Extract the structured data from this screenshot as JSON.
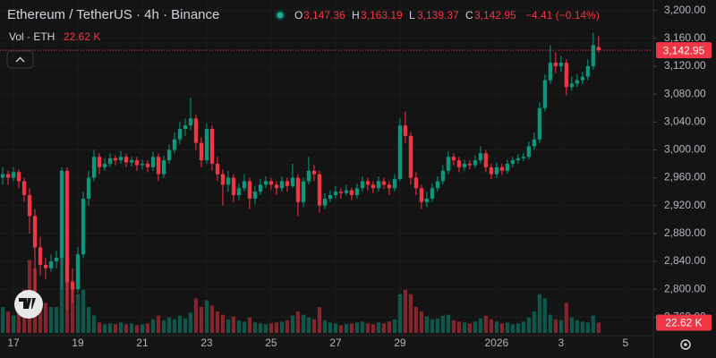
{
  "header": {
    "symbol": "Ethereum / TetherUS · 4h · Binance",
    "o_label": "O",
    "o": "3,147.36",
    "h_label": "H",
    "h": "3,163.19",
    "l_label": "L",
    "l": "3,139.37",
    "c_label": "C",
    "c": "3,142.95",
    "change": "−4.41 (−0.14%)",
    "vol_label": "Vol · ETH",
    "vol": "22.62 K"
  },
  "chart_data": {
    "type": "candlestick",
    "up_color": "#089981",
    "down_color": "#f23645",
    "ohlc": [
      [
        2960,
        2975,
        2950,
        2965
      ],
      [
        2965,
        2970,
        2950,
        2960
      ],
      [
        2960,
        2975,
        2955,
        2968
      ],
      [
        2968,
        2972,
        2945,
        2955
      ],
      [
        2955,
        2960,
        2925,
        2935
      ],
      [
        2935,
        2945,
        2880,
        2905
      ],
      [
        2905,
        2915,
        2790,
        2860
      ],
      [
        2860,
        2875,
        2820,
        2835
      ],
      [
        2835,
        2845,
        2815,
        2830
      ],
      [
        2830,
        2850,
        2825,
        2840
      ],
      [
        2840,
        2855,
        2830,
        2845
      ],
      [
        2845,
        2975,
        2800,
        2970
      ],
      [
        2970,
        2975,
        2770,
        2810
      ],
      [
        2810,
        2830,
        2780,
        2800
      ],
      [
        2800,
        2860,
        2795,
        2850
      ],
      [
        2850,
        2940,
        2845,
        2930
      ],
      [
        2930,
        2970,
        2920,
        2960
      ],
      [
        2960,
        3000,
        2955,
        2990
      ],
      [
        2990,
        2995,
        2965,
        2975
      ],
      [
        2975,
        2988,
        2970,
        2980
      ],
      [
        2980,
        2995,
        2975,
        2988
      ],
      [
        2988,
        2992,
        2978,
        2985
      ],
      [
        2985,
        2998,
        2980,
        2990
      ],
      [
        2990,
        2994,
        2975,
        2982
      ],
      [
        2982,
        2990,
        2976,
        2985
      ],
      [
        2985,
        2990,
        2970,
        2978
      ],
      [
        2978,
        2986,
        2972,
        2980
      ],
      [
        2980,
        2985,
        2968,
        2975
      ],
      [
        2975,
        2998,
        2970,
        2990
      ],
      [
        2990,
        2995,
        2955,
        2965
      ],
      [
        2965,
        2992,
        2960,
        2985
      ],
      [
        2985,
        3008,
        2980,
        3000
      ],
      [
        3000,
        3025,
        2995,
        3015
      ],
      [
        3015,
        3040,
        3008,
        3030
      ],
      [
        3030,
        3045,
        3020,
        3035
      ],
      [
        3035,
        3075,
        3028,
        3045
      ],
      [
        3045,
        3050,
        3000,
        3010
      ],
      [
        3010,
        3018,
        2975,
        2985
      ],
      [
        2985,
        3038,
        2980,
        3030
      ],
      [
        3030,
        3035,
        2970,
        2980
      ],
      [
        2980,
        2990,
        2955,
        2965
      ],
      [
        2965,
        2972,
        2920,
        2950
      ],
      [
        2950,
        2970,
        2940,
        2960
      ],
      [
        2960,
        2965,
        2925,
        2935
      ],
      [
        2935,
        2952,
        2928,
        2945
      ],
      [
        2945,
        2965,
        2940,
        2955
      ],
      [
        2955,
        2960,
        2915,
        2930
      ],
      [
        2930,
        2948,
        2922,
        2940
      ],
      [
        2940,
        2958,
        2935,
        2950
      ],
      [
        2950,
        2962,
        2945,
        2955
      ],
      [
        2955,
        2960,
        2942,
        2950
      ],
      [
        2950,
        2955,
        2935,
        2945
      ],
      [
        2945,
        2962,
        2940,
        2955
      ],
      [
        2955,
        2960,
        2940,
        2948
      ],
      [
        2948,
        2980,
        2945,
        2960
      ],
      [
        2960,
        2965,
        2905,
        2925
      ],
      [
        2925,
        2960,
        2918,
        2955
      ],
      [
        2955,
        2990,
        2950,
        2970
      ],
      [
        2970,
        2978,
        2955,
        2965
      ],
      [
        2965,
        2970,
        2910,
        2920
      ],
      [
        2920,
        2938,
        2915,
        2930
      ],
      [
        2930,
        2942,
        2925,
        2935
      ],
      [
        2935,
        2948,
        2930,
        2940
      ],
      [
        2940,
        2945,
        2930,
        2938
      ],
      [
        2938,
        2950,
        2934,
        2942
      ],
      [
        2942,
        2946,
        2928,
        2935
      ],
      [
        2935,
        2952,
        2930,
        2945
      ],
      [
        2945,
        2962,
        2940,
        2955
      ],
      [
        2955,
        2960,
        2942,
        2950
      ],
      [
        2950,
        2955,
        2938,
        2945
      ],
      [
        2945,
        2962,
        2940,
        2955
      ],
      [
        2955,
        2960,
        2944,
        2950
      ],
      [
        2950,
        2955,
        2935,
        2945
      ],
      [
        2945,
        2965,
        2940,
        2958
      ],
      [
        2958,
        3045,
        2955,
        3035
      ],
      [
        3035,
        3055,
        3010,
        3020
      ],
      [
        3020,
        3025,
        2950,
        2960
      ],
      [
        2960,
        2968,
        2935,
        2945
      ],
      [
        2945,
        2950,
        2915,
        2925
      ],
      [
        2925,
        2940,
        2918,
        2930
      ],
      [
        2930,
        2952,
        2925,
        2945
      ],
      [
        2945,
        2962,
        2940,
        2955
      ],
      [
        2955,
        2978,
        2950,
        2970
      ],
      [
        2970,
        2998,
        2965,
        2990
      ],
      [
        2990,
        2995,
        2978,
        2985
      ],
      [
        2985,
        2990,
        2968,
        2975
      ],
      [
        2975,
        2986,
        2970,
        2980
      ],
      [
        2980,
        2985,
        2972,
        2978
      ],
      [
        2978,
        2992,
        2974,
        2985
      ],
      [
        2985,
        3005,
        2980,
        2995
      ],
      [
        2995,
        3000,
        2968,
        2975
      ],
      [
        2975,
        2980,
        2958,
        2965
      ],
      [
        2965,
        2982,
        2960,
        2975
      ],
      [
        2975,
        2980,
        2964,
        2970
      ],
      [
        2970,
        2986,
        2966,
        2980
      ],
      [
        2980,
        2990,
        2975,
        2985
      ],
      [
        2985,
        2994,
        2980,
        2988
      ],
      [
        2988,
        2996,
        2984,
        2990
      ],
      [
        2990,
        3012,
        2986,
        3005
      ],
      [
        3005,
        3025,
        3000,
        3015
      ],
      [
        3015,
        3068,
        3010,
        3060
      ],
      [
        3060,
        3108,
        3055,
        3100
      ],
      [
        3100,
        3150,
        3095,
        3125
      ],
      [
        3125,
        3140,
        3110,
        3120
      ],
      [
        3120,
        3135,
        3112,
        3125
      ],
      [
        3125,
        3130,
        3078,
        3090
      ],
      [
        3090,
        3105,
        3085,
        3095
      ],
      [
        3095,
        3108,
        3090,
        3100
      ],
      [
        3100,
        3112,
        3094,
        3105
      ],
      [
        3105,
        3130,
        3100,
        3120
      ],
      [
        3120,
        3168,
        3115,
        3150
      ],
      [
        3147.36,
        3163.19,
        3139.37,
        3142.95
      ]
    ],
    "volume": [
      57000,
      47000,
      38000,
      66000,
      95000,
      160000,
      142000,
      76000,
      66000,
      57000,
      57000,
      171000,
      142000,
      114000,
      85000,
      95000,
      57000,
      38000,
      23000,
      19000,
      21000,
      19000,
      23000,
      19000,
      21000,
      17000,
      19000,
      21000,
      30000,
      38000,
      28000,
      34000,
      30000,
      38000,
      32000,
      45000,
      76000,
      57000,
      72000,
      60000,
      47000,
      40000,
      30000,
      36000,
      28000,
      25000,
      34000,
      23000,
      21000,
      19000,
      21000,
      23000,
      25000,
      28000,
      38000,
      47000,
      40000,
      34000,
      30000,
      57000,
      28000,
      23000,
      21000,
      17000,
      19000,
      21000,
      23000,
      25000,
      21000,
      19000,
      23000,
      21000,
      25000,
      30000,
      85000,
      95000,
      85000,
      57000,
      47000,
      36000,
      30000,
      32000,
      38000,
      40000,
      28000,
      25000,
      23000,
      21000,
      25000,
      32000,
      38000,
      30000,
      25000,
      21000,
      23000,
      19000,
      21000,
      25000,
      34000,
      47000,
      85000,
      76000,
      40000,
      30000,
      28000,
      66000,
      34000,
      28000,
      25000,
      23000,
      38000,
      22620
    ],
    "last_close_label": "3,142.95",
    "last_volume_label": "22.62 K",
    "xlim": [
      -0.5,
      121.2
    ],
    "xticks": [
      {
        "value": 2,
        "label": "17"
      },
      {
        "value": 14,
        "label": "19"
      },
      {
        "value": 26,
        "label": "21"
      },
      {
        "value": 38,
        "label": "23"
      },
      {
        "value": 50,
        "label": "25"
      },
      {
        "value": 62,
        "label": "27"
      },
      {
        "value": 74,
        "label": "29"
      },
      {
        "value": 92,
        "label": "2026"
      },
      {
        "value": 104,
        "label": "3"
      },
      {
        "value": 116,
        "label": "5"
      }
    ],
    "ylim": [
      2727,
      3215
    ],
    "yticks": [
      {
        "value": 3200,
        "label": "3,200.00"
      },
      {
        "value": 3160,
        "label": "3,160.00"
      },
      {
        "value": 3120,
        "label": "3,120.00"
      },
      {
        "value": 3080,
        "label": "3,080.00"
      },
      {
        "value": 3040,
        "label": "3,040.00"
      },
      {
        "value": 3000,
        "label": "3,000.00"
      },
      {
        "value": 2960,
        "label": "2,960.00"
      },
      {
        "value": 2920,
        "label": "2,920.00"
      },
      {
        "value": 2880,
        "label": "2,880.00"
      },
      {
        "value": 2840,
        "label": "2,840.00"
      },
      {
        "value": 2800,
        "label": "2,800.00"
      },
      {
        "value": 2760,
        "label": "2,760.00"
      }
    ]
  }
}
